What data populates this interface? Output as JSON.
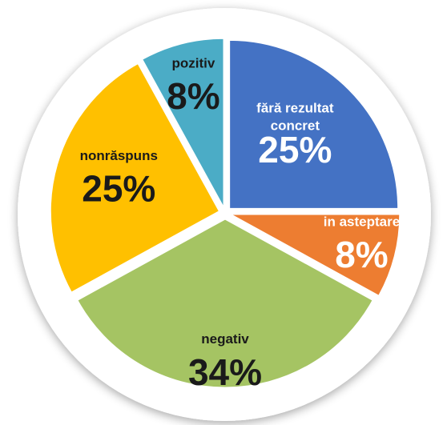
{
  "chart_data": {
    "type": "pie",
    "categories": [
      "fără rezultat concret",
      "in asteptare",
      "negativ",
      "nonrăspuns",
      "pozitiv"
    ],
    "values": [
      25,
      8,
      34,
      25,
      8
    ],
    "value_labels": [
      "25%",
      "8%",
      "34%",
      "25%",
      "8%"
    ],
    "colors": [
      "#4472c4",
      "#ed7d31",
      "#a5c463",
      "#ffc000",
      "#4bacc6"
    ],
    "label_colors": [
      "#ffffff",
      "#ffffff",
      "#1a1a1a",
      "#1a1a1a",
      "#1a1a1a"
    ]
  }
}
